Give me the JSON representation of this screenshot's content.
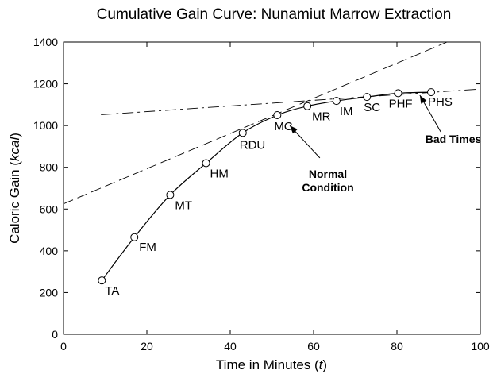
{
  "chart_data": {
    "type": "line",
    "title": "Cumulative Gain Curve: Nunamiut Marrow Extraction",
    "xlabel": {
      "prefix": "Time in Minutes (",
      "italic": "t",
      "suffix": ")"
    },
    "ylabel": {
      "prefix": "Caloric Gain (",
      "italic": "kcal",
      "suffix": ")"
    },
    "xlim": [
      0,
      100
    ],
    "ylim": [
      0,
      1400
    ],
    "xticks": [
      0,
      20,
      40,
      60,
      80,
      100
    ],
    "yticks": [
      0,
      200,
      400,
      600,
      800,
      1000,
      1200,
      1400
    ],
    "grid": false,
    "series": [
      {
        "points": [
          {
            "x": 9.2,
            "y": 258,
            "label": "TA"
          },
          {
            "x": 17.0,
            "y": 465,
            "label": "FM"
          },
          {
            "x": 25.6,
            "y": 668,
            "label": "MT"
          },
          {
            "x": 34.2,
            "y": 820,
            "label": "HM"
          },
          {
            "x": 43.0,
            "y": 965,
            "label": "RDU"
          },
          {
            "x": 51.3,
            "y": 1050,
            "label": "MC"
          },
          {
            "x": 58.5,
            "y": 1093,
            "label": "MR"
          },
          {
            "x": 65.5,
            "y": 1118,
            "label": "IM"
          },
          {
            "x": 72.8,
            "y": 1137,
            "label": "SC"
          },
          {
            "x": 80.3,
            "y": 1155,
            "label": "PHF"
          },
          {
            "x": 88.2,
            "y": 1160,
            "label": "PHS"
          }
        ]
      }
    ],
    "reference_lines": [
      {
        "style": "dashed",
        "from": {
          "x": 0,
          "y": 625
        },
        "to": {
          "x": 92,
          "y": 1400
        }
      },
      {
        "style": "dashdot",
        "from": {
          "x": 9,
          "y": 1052
        },
        "to": {
          "x": 100,
          "y": 1175
        }
      }
    ],
    "annotations": [
      {
        "text_lines": [
          "Normal",
          "Condition"
        ],
        "arrow_target": {
          "x": 54.3,
          "y": 1000
        },
        "arrow_from": {
          "x": 61.5,
          "y": 845
        }
      },
      {
        "text_lines": [
          "Bad Times"
        ],
        "arrow_target": {
          "x": 85.5,
          "y": 1145
        },
        "arrow_from": {
          "x": 90.5,
          "y": 970
        }
      }
    ]
  }
}
